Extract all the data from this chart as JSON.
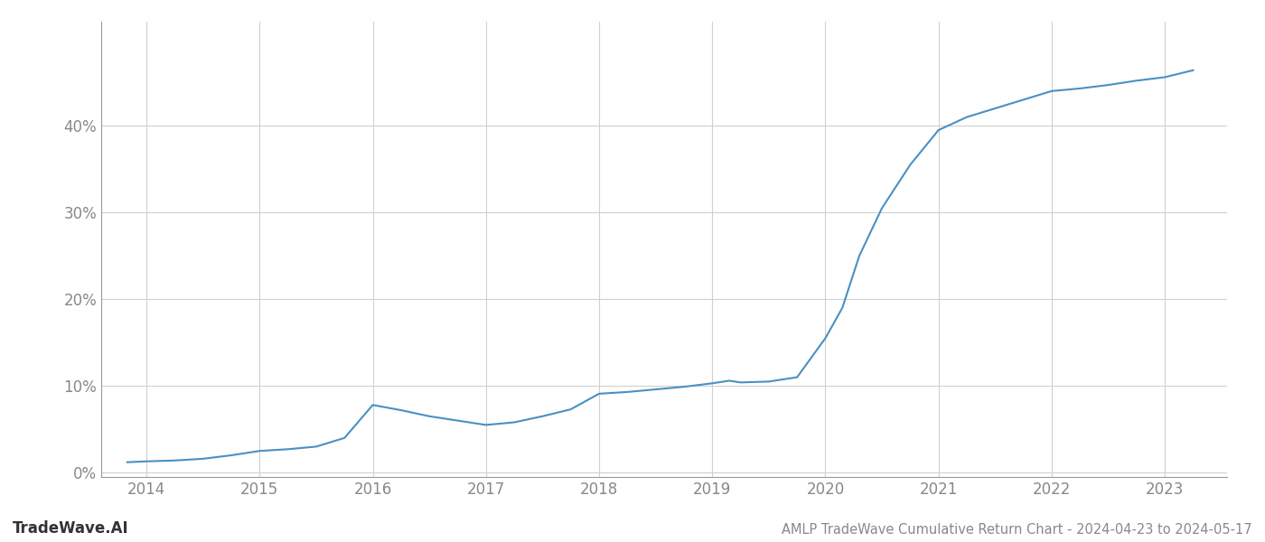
{
  "title": "AMLP TradeWave Cumulative Return Chart - 2024-04-23 to 2024-05-17",
  "watermark": "TradeWave.AI",
  "line_color": "#4a90c4",
  "background_color": "#ffffff",
  "grid_color": "#d0d0d0",
  "x_years": [
    2014,
    2015,
    2016,
    2017,
    2018,
    2019,
    2020,
    2021,
    2022,
    2023
  ],
  "x_values": [
    2013.83,
    2014.0,
    2014.25,
    2014.5,
    2014.75,
    2015.0,
    2015.25,
    2015.5,
    2015.75,
    2016.0,
    2016.25,
    2016.5,
    2016.75,
    2017.0,
    2017.25,
    2017.5,
    2017.75,
    2018.0,
    2018.25,
    2018.5,
    2018.75,
    2019.0,
    2019.15,
    2019.25,
    2019.5,
    2019.75,
    2020.0,
    2020.15,
    2020.3,
    2020.5,
    2020.75,
    2021.0,
    2021.25,
    2021.5,
    2021.75,
    2022.0,
    2022.25,
    2022.5,
    2022.75,
    2023.0,
    2023.25
  ],
  "y_values": [
    0.012,
    0.013,
    0.014,
    0.016,
    0.02,
    0.025,
    0.027,
    0.03,
    0.04,
    0.078,
    0.072,
    0.065,
    0.06,
    0.055,
    0.058,
    0.065,
    0.073,
    0.091,
    0.093,
    0.096,
    0.099,
    0.103,
    0.106,
    0.104,
    0.105,
    0.11,
    0.155,
    0.19,
    0.25,
    0.305,
    0.355,
    0.395,
    0.41,
    0.42,
    0.43,
    0.44,
    0.443,
    0.447,
    0.452,
    0.456,
    0.464
  ],
  "ylim": [
    -0.005,
    0.52
  ],
  "xlim": [
    2013.6,
    2023.55
  ],
  "yticks": [
    0.0,
    0.1,
    0.2,
    0.3,
    0.4
  ],
  "ytick_labels": [
    "0%",
    "10%",
    "20%",
    "30%",
    "40%"
  ],
  "line_width": 1.5,
  "title_fontsize": 10.5,
  "tick_fontsize": 12,
  "watermark_fontsize": 12
}
